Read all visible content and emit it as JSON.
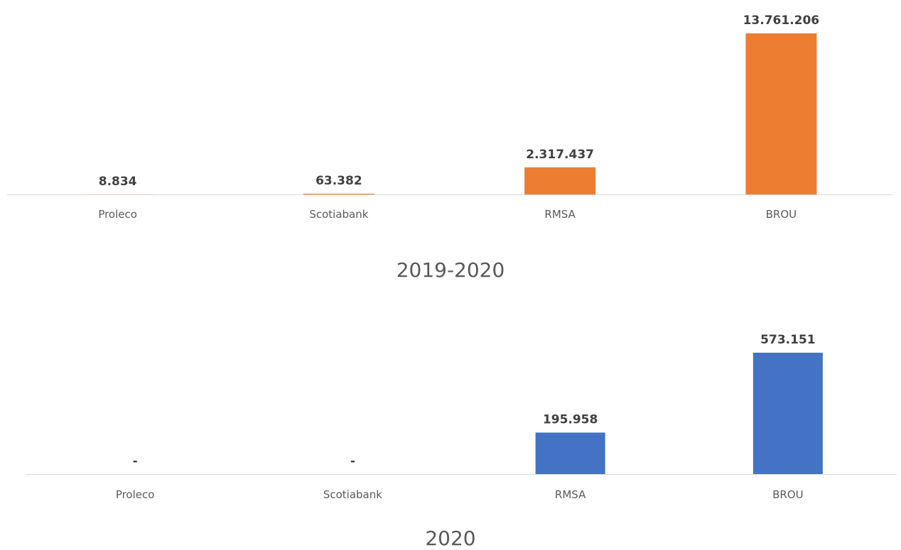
{
  "chart_data": [
    {
      "type": "bar",
      "title": "2019-2020",
      "categories": [
        "Proleco",
        "Scotiabank",
        "RMSA",
        "BROU"
      ],
      "values": [
        8834,
        63382,
        2317437,
        13761206
      ],
      "data_labels": [
        "8.834",
        "63.382",
        "2.317.437",
        "13.761.206"
      ],
      "color": "#ED7D31",
      "ylim": [
        0,
        13761206
      ],
      "grid": false,
      "legend": "none"
    },
    {
      "type": "bar",
      "title": "2020",
      "categories": [
        "Proleco",
        "Scotiabank",
        "RMSA",
        "BROU"
      ],
      "values": [
        0,
        0,
        195958,
        573151
      ],
      "data_labels": [
        "-",
        "-",
        "195.958",
        "573.151"
      ],
      "color": "#4472C4",
      "ylim": [
        0,
        573151
      ],
      "grid": false,
      "legend": "none"
    }
  ]
}
